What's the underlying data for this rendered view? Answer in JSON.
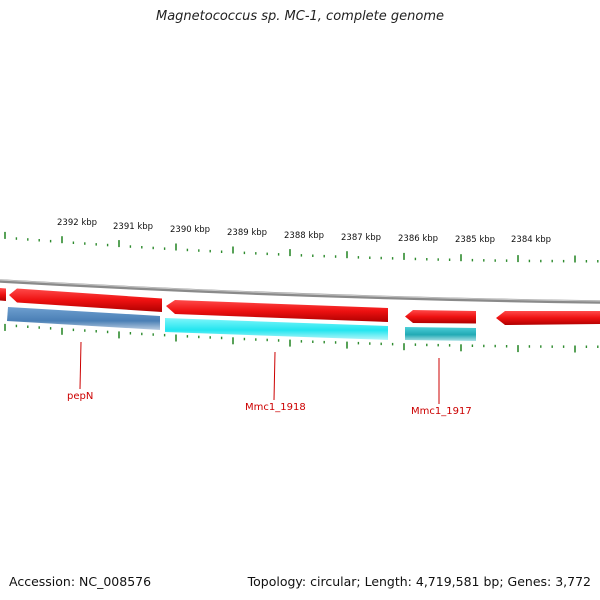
{
  "header": {
    "title": "Magnetococcus sp. MC-1, complete genome"
  },
  "footer": {
    "accession": "Accession: NC_008576",
    "summary": "Topology: circular; Length: 4,719,581 bp; Genes: 3,772"
  },
  "scale": {
    "labels": [
      "2392 kbp",
      "2391 kbp",
      "2390 kbp",
      "2389 kbp",
      "2388 kbp",
      "2387 kbp",
      "2386 kbp",
      "2385 kbp",
      "2384 kbp"
    ]
  },
  "genes": [
    {
      "label": "pepN"
    },
    {
      "label": "Mmc1_1918"
    },
    {
      "label": "Mmc1_1917"
    }
  ],
  "colors": {
    "backbone": "#8a8a8a",
    "forward_cds": "#ee1111",
    "reverse_blue": "#4a7fb5",
    "reverse_cyan": "#22e5ef",
    "reverse_teal": "#22aab5",
    "tick": "#2e8b2e",
    "label": "#cc0000"
  }
}
